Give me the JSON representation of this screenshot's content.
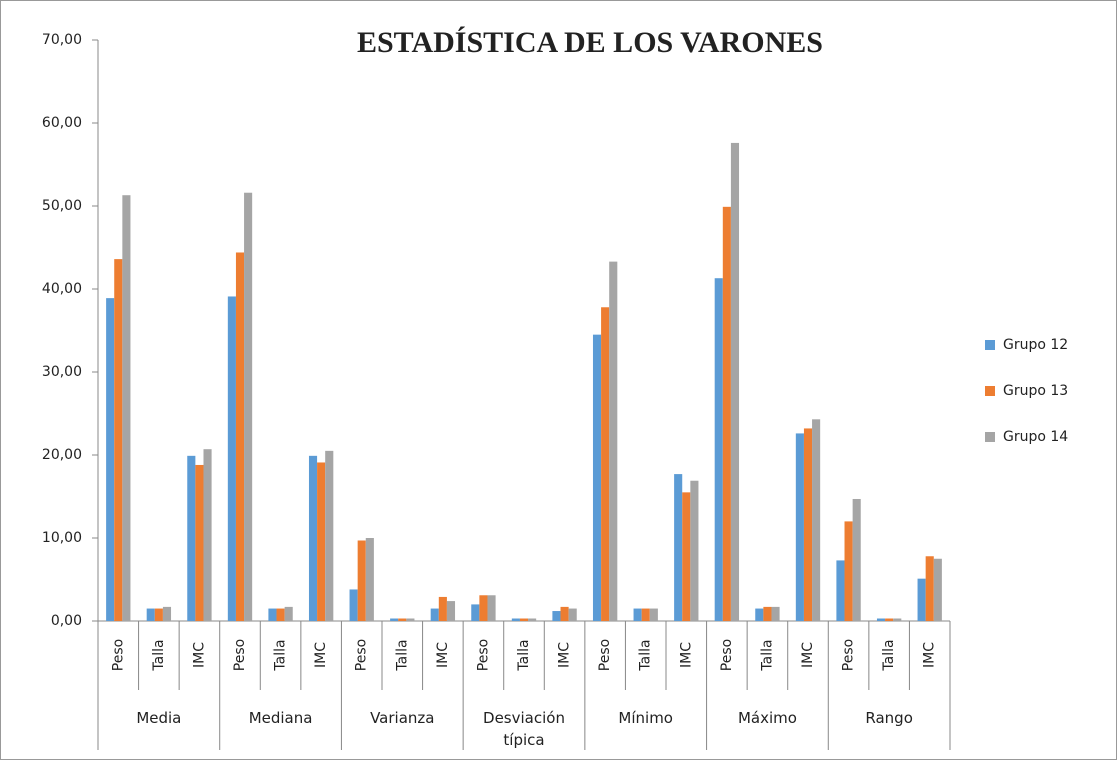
{
  "chart_data": {
    "type": "bar",
    "title": "ESTADÍSTICA DE LOS VARONES",
    "categories": [
      "Peso",
      "Talla",
      "IMC",
      "Peso",
      "Talla",
      "IMC",
      "Peso",
      "Talla",
      "IMC",
      "Peso",
      "Talla",
      "IMC",
      "Peso",
      "Talla",
      "IMC",
      "Peso",
      "Talla",
      "IMC",
      "Peso",
      "Talla",
      "IMC"
    ],
    "groups": [
      "Media",
      "Mediana",
      "Varianza",
      "Desviación típica",
      "Mínimo",
      "Máximo",
      "Rango"
    ],
    "series": [
      {
        "name": "Grupo 12",
        "color": "#5b9bd5",
        "values": [
          38.9,
          1.5,
          19.9,
          39.1,
          1.5,
          19.9,
          3.8,
          0.3,
          1.5,
          2.0,
          0.3,
          1.2,
          34.5,
          1.5,
          17.7,
          41.3,
          1.5,
          22.6,
          7.3,
          0.3,
          5.1
        ]
      },
      {
        "name": "Grupo 13",
        "color": "#ed7d31",
        "values": [
          43.6,
          1.5,
          18.8,
          44.4,
          1.5,
          19.1,
          9.7,
          0.3,
          2.9,
          3.1,
          0.3,
          1.7,
          37.8,
          1.5,
          15.5,
          49.9,
          1.7,
          23.2,
          12.0,
          0.3,
          7.8
        ]
      },
      {
        "name": "Grupo 14",
        "color": "#a5a5a5",
        "values": [
          51.3,
          1.7,
          20.7,
          51.6,
          1.7,
          20.5,
          10.0,
          0.3,
          2.4,
          3.1,
          0.3,
          1.5,
          43.3,
          1.5,
          16.9,
          57.6,
          1.7,
          24.3,
          14.7,
          0.3,
          7.5
        ]
      }
    ],
    "ylim": [
      0,
      70
    ],
    "yticks": [
      {
        "value": 0,
        "label": "0,00"
      },
      {
        "value": 10,
        "label": "10,00"
      },
      {
        "value": 20,
        "label": "20,00"
      },
      {
        "value": 30,
        "label": "30,00"
      },
      {
        "value": 40,
        "label": "40,00"
      },
      {
        "value": 50,
        "label": "50,00"
      },
      {
        "value": 60,
        "label": "60,00"
      },
      {
        "value": 70,
        "label": "70,00"
      }
    ],
    "grid": false,
    "legend": "right"
  }
}
